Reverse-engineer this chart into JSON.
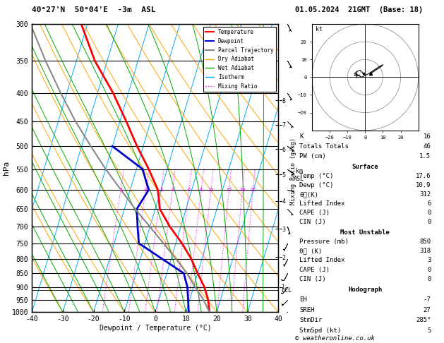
{
  "title_left": "40°27'N  50°04'E  -3m  ASL",
  "title_right": "01.05.2024  21GMT  (Base: 18)",
  "xlabel": "Dewpoint / Temperature (°C)",
  "ylabel_left": "hPa",
  "pressure_levels": [
    300,
    350,
    400,
    450,
    500,
    550,
    600,
    650,
    700,
    750,
    800,
    850,
    900,
    950,
    1000
  ],
  "xlim": [
    -40,
    40
  ],
  "temp_profile": {
    "pressure": [
      1000,
      950,
      900,
      850,
      800,
      750,
      700,
      650,
      600,
      550,
      500,
      450,
      400,
      350,
      300
    ],
    "temp": [
      17.6,
      16.0,
      13.5,
      10.0,
      6.5,
      2.0,
      -3.5,
      -8.5,
      -11.0,
      -16.0,
      -22.0,
      -28.0,
      -35.0,
      -44.0,
      -52.0
    ]
  },
  "dewpoint_profile": {
    "pressure": [
      1000,
      950,
      900,
      850,
      800,
      750,
      700,
      650,
      600,
      550,
      500
    ],
    "dewp": [
      10.9,
      9.5,
      8.0,
      5.5,
      -3.0,
      -12.0,
      -14.0,
      -16.0,
      -14.0,
      -18.0,
      -30.0
    ]
  },
  "parcel_profile": {
    "pressure": [
      1000,
      950,
      900,
      850,
      800,
      750,
      700,
      650,
      600,
      550,
      500,
      450,
      400,
      350,
      300
    ],
    "temp": [
      17.6,
      14.5,
      10.5,
      6.5,
      1.5,
      -4.0,
      -10.0,
      -16.5,
      -23.0,
      -30.0,
      -37.0,
      -44.5,
      -52.0,
      -60.0,
      -68.5
    ]
  },
  "mixing_ratio_vals": [
    1,
    2,
    3,
    4,
    6,
    8,
    10,
    15,
    20,
    25
  ],
  "lcl_pressure": 912,
  "alt_pressure": {
    "1": 900,
    "2": 795,
    "3": 706,
    "4": 628,
    "5": 563,
    "6": 506,
    "7": 457,
    "8": 413
  },
  "surface_data": {
    "K": 16,
    "Totals_Totals": 46,
    "PW_cm": 1.5,
    "Temp_C": 17.6,
    "Dewp_C": 10.9,
    "theta_e_K": 312,
    "Lifted_Index": 6,
    "CAPE_J": 0,
    "CIN_J": 0
  },
  "most_unstable": {
    "Pressure_mb": 850,
    "theta_e_K": 318,
    "Lifted_Index": 3,
    "CAPE_J": 0,
    "CIN_J": 0
  },
  "hodograph": {
    "EH": -7,
    "SREH": 27,
    "StmDir": 285,
    "StmSpd_kt": 5
  },
  "wind_barbs": {
    "pressure": [
      1000,
      950,
      900,
      850,
      800,
      750,
      700,
      650,
      600,
      550,
      500,
      450,
      400,
      350,
      300
    ],
    "u": [
      3,
      4,
      5,
      4,
      3,
      2,
      -1,
      -2,
      -4,
      -5,
      -6,
      -5,
      -4,
      -3,
      -2
    ],
    "v": [
      3,
      4,
      6,
      8,
      6,
      4,
      3,
      2,
      1,
      3,
      4,
      5,
      6,
      5,
      4
    ]
  },
  "colors": {
    "temp": "#ff0000",
    "dewpoint": "#0000cd",
    "parcel": "#888888",
    "dry_adiabat": "#ffa500",
    "wet_adiabat": "#00aa00",
    "isotherm": "#00aaff",
    "mixing_ratio": "#ff00ff",
    "background": "#ffffff",
    "grid": "#000000"
  },
  "copyright": "© weatheronline.co.uk"
}
